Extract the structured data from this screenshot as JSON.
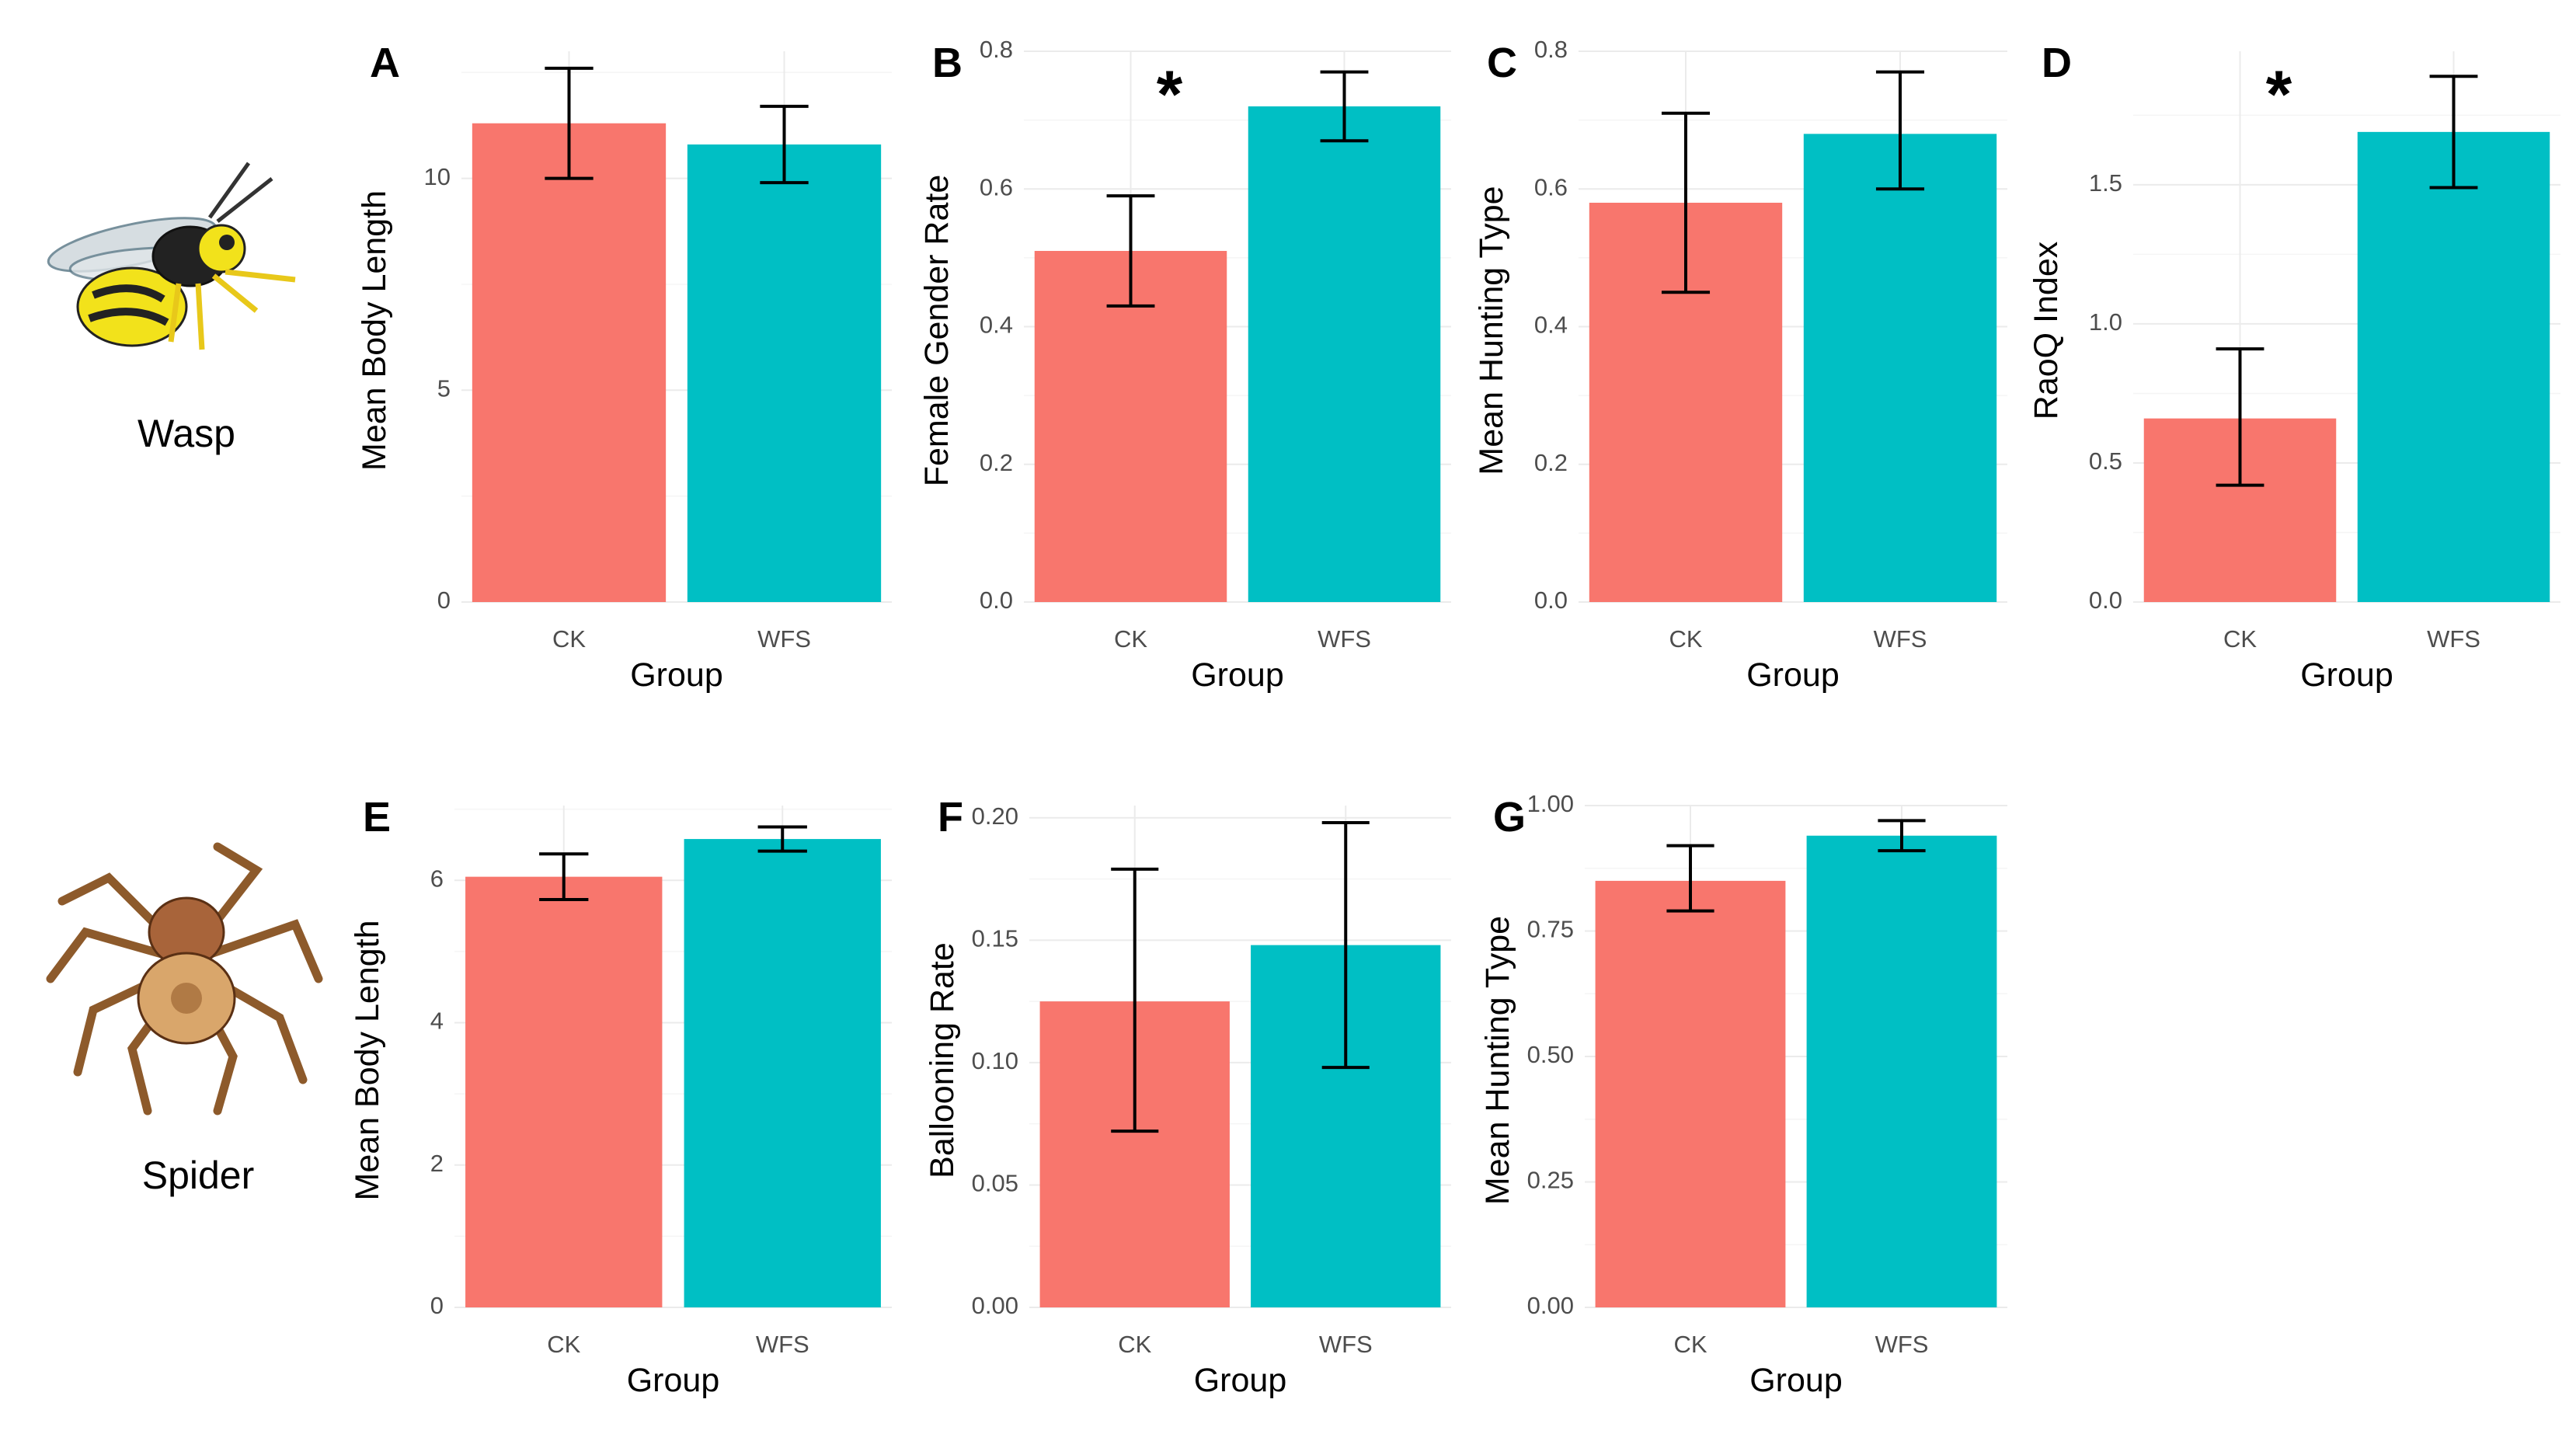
{
  "figure": {
    "animals": [
      {
        "label": "Wasp",
        "icon": "wasp-icon"
      },
      {
        "label": "Spider",
        "icon": "spider-icon"
      }
    ],
    "colors": {
      "CK": "#F8766D",
      "WFS": "#00BFC4"
    }
  },
  "chart_data": [
    {
      "panel": "A",
      "type": "bar",
      "title": "",
      "xlabel": "Group",
      "ylabel": "Mean Body Length",
      "categories": [
        "CK",
        "WFS"
      ],
      "values": [
        11.3,
        10.8
      ],
      "errors": [
        [
          10.0,
          12.6
        ],
        [
          9.9,
          11.7
        ]
      ],
      "ylim": [
        0,
        13
      ],
      "yticks": [
        0,
        5,
        10
      ],
      "ytick_labels": [
        "0",
        "5",
        "10"
      ],
      "significance": ""
    },
    {
      "panel": "B",
      "type": "bar",
      "title": "",
      "xlabel": "Group",
      "ylabel": "Female Gender Rate",
      "categories": [
        "CK",
        "WFS"
      ],
      "values": [
        0.51,
        0.72
      ],
      "errors": [
        [
          0.43,
          0.59
        ],
        [
          0.67,
          0.77
        ]
      ],
      "ylim": [
        0,
        0.8
      ],
      "yticks": [
        0,
        0.2,
        0.4,
        0.6,
        0.8
      ],
      "ytick_labels": [
        "0.0",
        "0.2",
        "0.4",
        "0.6",
        "0.8"
      ],
      "significance": "*"
    },
    {
      "panel": "C",
      "type": "bar",
      "title": "",
      "xlabel": "Group",
      "ylabel": "Mean Hunting Type",
      "categories": [
        "CK",
        "WFS"
      ],
      "values": [
        0.58,
        0.68
      ],
      "errors": [
        [
          0.45,
          0.71
        ],
        [
          0.6,
          0.77
        ]
      ],
      "ylim": [
        0,
        0.8
      ],
      "yticks": [
        0,
        0.2,
        0.4,
        0.6,
        0.8
      ],
      "ytick_labels": [
        "0.0",
        "0.2",
        "0.4",
        "0.6",
        "0.8"
      ],
      "significance": ""
    },
    {
      "panel": "D",
      "type": "bar",
      "title": "",
      "xlabel": "Group",
      "ylabel": "RaoQ Index",
      "categories": [
        "CK",
        "WFS"
      ],
      "values": [
        0.66,
        1.69
      ],
      "errors": [
        [
          0.42,
          0.91
        ],
        [
          1.49,
          1.89
        ]
      ],
      "ylim": [
        0,
        1.98
      ],
      "yticks": [
        0,
        0.5,
        1.0,
        1.5
      ],
      "ytick_labels": [
        "0.0",
        "0.5",
        "1.0",
        "1.5"
      ],
      "significance": "*"
    },
    {
      "panel": "E",
      "type": "bar",
      "title": "",
      "xlabel": "Group",
      "ylabel": "Mean Body Length",
      "categories": [
        "CK",
        "WFS"
      ],
      "values": [
        6.05,
        6.58
      ],
      "errors": [
        [
          5.73,
          6.37
        ],
        [
          6.41,
          6.75
        ]
      ],
      "ylim": [
        0,
        7.05
      ],
      "yticks": [
        0,
        2,
        4,
        6
      ],
      "ytick_labels": [
        "0",
        "2",
        "4",
        "6"
      ],
      "significance": ""
    },
    {
      "panel": "F",
      "type": "bar",
      "title": "",
      "xlabel": "Group",
      "ylabel": "Ballooning Rate",
      "categories": [
        "CK",
        "WFS"
      ],
      "values": [
        0.125,
        0.148
      ],
      "errors": [
        [
          0.072,
          0.179
        ],
        [
          0.098,
          0.198
        ]
      ],
      "ylim": [
        0,
        0.205
      ],
      "yticks": [
        0,
        0.05,
        0.1,
        0.15,
        0.2
      ],
      "ytick_labels": [
        "0.00",
        "0.05",
        "0.10",
        "0.15",
        "0.20"
      ],
      "significance": ""
    },
    {
      "panel": "G",
      "type": "bar",
      "title": "",
      "xlabel": "Group",
      "ylabel": "Mean Hunting Type",
      "categories": [
        "CK",
        "WFS"
      ],
      "values": [
        0.85,
        0.94
      ],
      "errors": [
        [
          0.79,
          0.92
        ],
        [
          0.91,
          0.97
        ]
      ],
      "ylim": [
        0,
        1.0
      ],
      "yticks": [
        0,
        0.25,
        0.5,
        0.75,
        1.0
      ],
      "ytick_labels": [
        "0.00",
        "0.25",
        "0.50",
        "0.75",
        "1.00"
      ],
      "significance": ""
    }
  ]
}
